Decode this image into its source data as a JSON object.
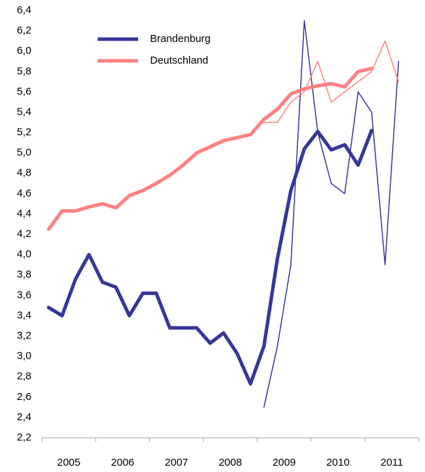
{
  "chart_data": {
    "type": "line",
    "categories": [
      null,
      "2005",
      null,
      null,
      null,
      "2006",
      null,
      null,
      null,
      "2007",
      null,
      null,
      null,
      "2008",
      null,
      null,
      null,
      "2009",
      null,
      null,
      null,
      "2010",
      null,
      null,
      null,
      "2011",
      null,
      null
    ],
    "series": [
      {
        "name": "Brandenburg",
        "color": "#36369a",
        "width": 5,
        "values": [
          3.48,
          3.4,
          3.76,
          4.0,
          3.73,
          3.68,
          3.4,
          3.62,
          3.62,
          3.28,
          3.28,
          3.28,
          3.13,
          3.23,
          3.03,
          2.73,
          3.1,
          3.96,
          4.63,
          5.04,
          5.21,
          5.03,
          5.08,
          4.88,
          5.22,
          null,
          null,
          null
        ]
      },
      {
        "name": "Deutschland",
        "color": "#ff8080",
        "width": 5,
        "values": [
          4.25,
          4.43,
          4.43,
          4.47,
          4.5,
          4.46,
          4.58,
          4.63,
          4.7,
          4.78,
          4.88,
          5.0,
          5.06,
          5.12,
          5.15,
          5.18,
          5.33,
          5.43,
          5.58,
          5.63,
          5.66,
          5.68,
          5.65,
          5.8,
          5.83,
          null,
          null,
          null
        ]
      },
      {
        "color": "#36369a",
        "width": 1.5,
        "values": [
          null,
          null,
          null,
          null,
          null,
          null,
          null,
          null,
          null,
          null,
          null,
          null,
          null,
          null,
          null,
          null,
          2.5,
          3.1,
          3.9,
          6.3,
          5.2,
          4.7,
          4.6,
          5.6,
          5.4,
          3.9,
          5.9,
          null
        ]
      },
      {
        "color": "#ff8080",
        "width": 1.5,
        "values": [
          null,
          null,
          null,
          null,
          null,
          null,
          null,
          null,
          null,
          null,
          null,
          null,
          null,
          null,
          null,
          null,
          5.3,
          5.3,
          5.5,
          5.6,
          5.9,
          5.5,
          5.6,
          5.7,
          5.8,
          6.1,
          5.7,
          null
        ]
      }
    ],
    "ylim": [
      2.2,
      6.4
    ],
    "yticks": [
      {
        "value": 2.2,
        "label": "2,2"
      },
      {
        "value": 2.4,
        "label": "2,4"
      },
      {
        "value": 2.6,
        "label": "2,6"
      },
      {
        "value": 2.8,
        "label": "2,8"
      },
      {
        "value": 3.0,
        "label": "3,0"
      },
      {
        "value": 3.2,
        "label": "3,2"
      },
      {
        "value": 3.4,
        "label": "3,4"
      },
      {
        "value": 3.6,
        "label": "3,6"
      },
      {
        "value": 3.8,
        "label": "3,8"
      },
      {
        "value": 4.0,
        "label": "4,0"
      },
      {
        "value": 4.2,
        "label": "4,2"
      },
      {
        "value": 4.4,
        "label": "4,4"
      },
      {
        "value": 4.6,
        "label": "4,6"
      },
      {
        "value": 4.8,
        "label": "4,8"
      },
      {
        "value": 5.0,
        "label": "5,0"
      },
      {
        "value": 5.2,
        "label": "5,2"
      },
      {
        "value": 5.4,
        "label": "5,4"
      },
      {
        "value": 5.6,
        "label": "5,6"
      },
      {
        "value": 5.8,
        "label": "5,8"
      },
      {
        "value": 6.0,
        "label": "6,0"
      },
      {
        "value": 6.2,
        "label": "6,2"
      },
      {
        "value": 6.4,
        "label": "6,4"
      }
    ],
    "grid": false
  }
}
